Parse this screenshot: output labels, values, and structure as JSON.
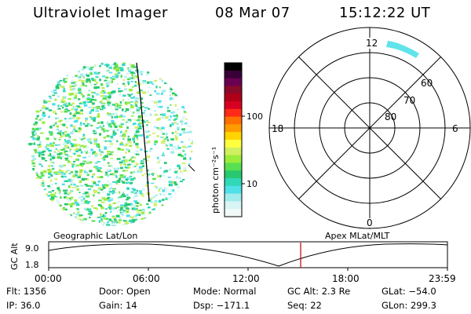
{
  "header": {
    "title": "Ultraviolet Imager",
    "date": "08 Mar 07",
    "time": "15:12:22 UT"
  },
  "colorbar": {
    "unit_label": "photon cm⁻²s⁻¹",
    "ticks": [
      "100",
      "10"
    ],
    "colors": [
      "#000000",
      "#3a0038",
      "#6a0050",
      "#8a0a2a",
      "#b00018",
      "#d80020",
      "#ff2a18",
      "#ff7000",
      "#ff9c00",
      "#ffd400",
      "#ffff40",
      "#d0f060",
      "#9cec3c",
      "#58e050",
      "#28c870",
      "#30d8b8",
      "#50e0e8",
      "#a0ecec",
      "#d8f4f4",
      "#f0f8f8"
    ]
  },
  "polar_plot": {
    "mlt_labels": [
      "12",
      "18",
      "6",
      "0"
    ],
    "lat_labels": [
      "60",
      "70",
      "80"
    ]
  },
  "timeline": {
    "left_label": "Geographic Lat/Lon",
    "right_label": "Apex  MLat/MLT",
    "axis_title": "GC Alt",
    "y_ticks": [
      "9.0",
      "1.8"
    ],
    "x_ticks": [
      "00:00",
      "06:00",
      "12:00",
      "18:00",
      "23:59"
    ],
    "marker_color": "#c00000"
  },
  "info": {
    "flt": "Flt: 1356",
    "ip": "IP: 36.0",
    "door": "Door: Open",
    "gain": "Gain: 14",
    "mode": "Mode: Normal",
    "dsp": "Dsp: −171.1",
    "gc_alt": "GC Alt: 2.3 Re",
    "seq": "Seq: 22",
    "glat": "GLat: −54.0",
    "glon": "GLon: 299.3"
  }
}
